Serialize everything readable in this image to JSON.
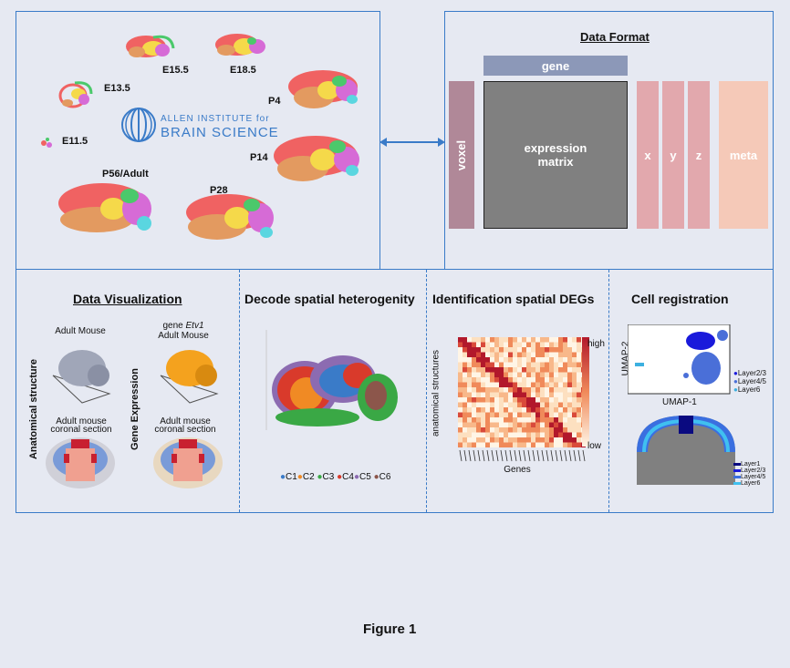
{
  "top_left": {
    "stages": [
      "E15.5",
      "E18.5",
      "E13.5",
      "P4",
      "E11.5",
      "P14",
      "P56/Adult",
      "P28"
    ],
    "logo_line1": "ALLEN INSTITUTE for",
    "logo_line2": "BRAIN SCIENCE"
  },
  "data_format": {
    "title": "Data Format",
    "gene": "gene",
    "voxel": "voxel",
    "matrix_line1": "expression",
    "matrix_line2": "matrix",
    "x": "x",
    "y": "y",
    "z": "z",
    "meta": "meta"
  },
  "visualization": {
    "title": "Data Visualization",
    "adult_mouse": "Adult Mouse",
    "gene_prefix": "gene",
    "gene_name": "Etv1",
    "gene_adult": "Adult Mouse",
    "anatomical": "Anatomical structure",
    "gene_expression": "Gene Expression",
    "coronal1_line1": "Adult mouse",
    "coronal1_line2": "coronal section",
    "coronal2_line1": "Adult mouse",
    "coronal2_line2": "coronal section"
  },
  "heterogeneity": {
    "title": "Decode spatial heterogenity",
    "legend": [
      {
        "label": "C1",
        "color": "#3a7bc8"
      },
      {
        "label": "C2",
        "color": "#f08a24"
      },
      {
        "label": "C3",
        "color": "#3aa845"
      },
      {
        "label": "C4",
        "color": "#d93a2b"
      },
      {
        "label": "C5",
        "color": "#8c6bb1"
      },
      {
        "label": "C6",
        "color": "#8c564b"
      }
    ]
  },
  "degs": {
    "title": "Identification spatial DEGs",
    "ylabel": "anatomical structures",
    "xlabel": "Genes",
    "high": "high",
    "low": "low"
  },
  "registration": {
    "title": "Cell registration",
    "umap_x": "UMAP-1",
    "umap_y": "UMAP-2",
    "umap_legend": [
      {
        "label": "Layer2/3",
        "color": "#1a1adb"
      },
      {
        "label": "Layer4/5",
        "color": "#4a6fd8"
      },
      {
        "label": "Layer6",
        "color": "#3cb0e0"
      }
    ],
    "coronal_legend": [
      {
        "label": "Layer1",
        "color": "#0a0a80"
      },
      {
        "label": "Layer2/3",
        "color": "#1a1adb"
      },
      {
        "label": "Layer4/5",
        "color": "#3a6fe0"
      },
      {
        "label": "Layer6",
        "color": "#40c0f0"
      }
    ]
  },
  "caption": "Figure 1"
}
